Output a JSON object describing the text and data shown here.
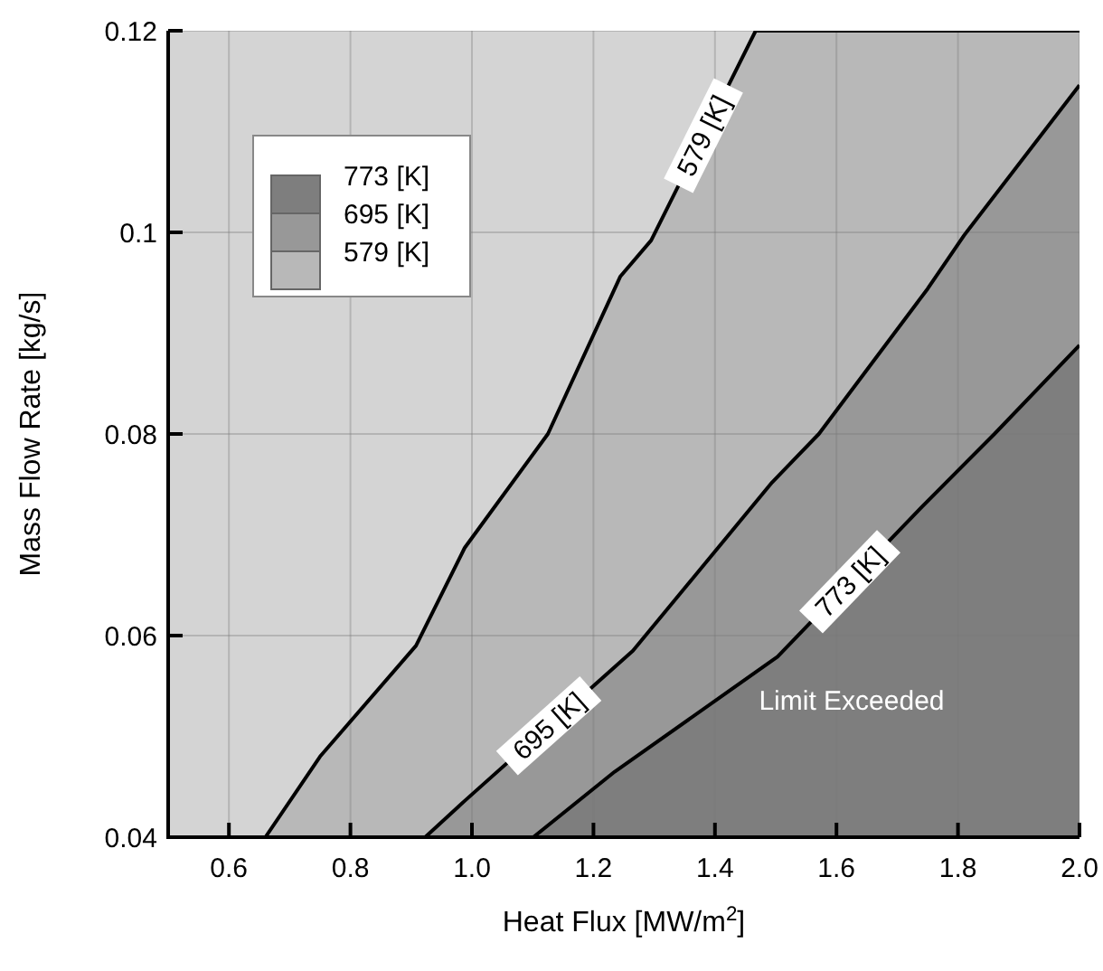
{
  "chart_data": {
    "type": "area",
    "xlabel": "Heat Flux [MW/m$^{2}$]",
    "ylabel": "Mass Flow Rate [kg/s]",
    "xlim": [
      0.5,
      2.0
    ],
    "ylim": [
      0.04,
      0.12
    ],
    "xticks": [
      0.6,
      0.8,
      {
        "value": 1.0,
        "label": "1.0"
      },
      1.2,
      1.4,
      1.6,
      1.8,
      {
        "value": 2.0,
        "label": "2.0"
      }
    ],
    "yticks": [
      0.04,
      0.06,
      0.08,
      0.1,
      0.12
    ],
    "grid": true,
    "legend": "top left",
    "annotations": [
      "Limit Exceeded"
    ],
    "series": [
      {
        "name": "579 [K]",
        "color": "#b8b8b8",
        "x": [
          0.66,
          0.75,
          0.908,
          0.988,
          1.125,
          1.244,
          1.295,
          1.467,
          2.0
        ],
        "values": [
          0.04,
          0.048,
          0.059,
          0.0687,
          0.08,
          0.0956,
          0.0992,
          0.12,
          0.12
        ]
      },
      {
        "name": "695 [K]",
        "color": "#989898",
        "x": [
          0.923,
          0.988,
          1.265,
          1.494,
          1.571,
          1.75,
          1.81,
          2.0
        ],
        "values": [
          0.04,
          0.0436,
          0.0585,
          0.0752,
          0.08,
          0.0944,
          0.0997,
          0.1146
        ]
      },
      {
        "name": "773 [K]",
        "color": "#7e7e7e",
        "x": [
          1.101,
          1.235,
          1.503,
          1.741,
          1.86,
          2.0
        ],
        "values": [
          0.04,
          0.0465,
          0.0579,
          0.0728,
          0.08,
          0.0888
        ]
      }
    ]
  }
}
